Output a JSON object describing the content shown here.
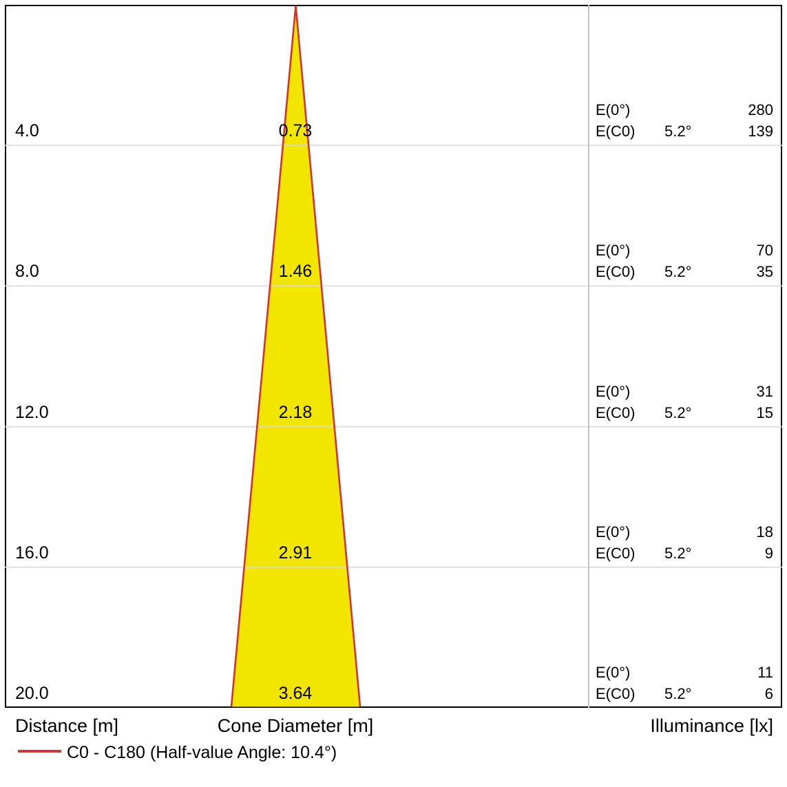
{
  "colors": {
    "cone_fill": "#F2E500",
    "cone_stroke": "#D23228",
    "legend_line": "#C43B40",
    "grid": "#D9D9D9",
    "divider": "#C4C4C4",
    "border": "#000000",
    "background": "#FFFFFF"
  },
  "chart_data": {
    "type": "cone-diagram",
    "title": "",
    "distances_m": [
      4.0,
      8.0,
      12.0,
      16.0,
      20.0
    ],
    "cone_diameters_m": [
      0.73,
      1.46,
      2.18,
      2.91,
      3.64
    ],
    "illuminance_e0_lx": [
      280,
      70,
      31,
      18,
      11
    ],
    "illuminance_ec0_lx": [
      139,
      35,
      15,
      9,
      6
    ],
    "beam_angle": "5.2°",
    "half_value_angle": "10.4°",
    "rows": [
      {
        "distance": "4.0",
        "cone_diameter": "0.73",
        "e0_label": "E(0°)",
        "e0_value": "280",
        "ec0_label": "E(C0)",
        "ec0_angle": "5.2°",
        "ec0_value": "139"
      },
      {
        "distance": "8.0",
        "cone_diameter": "1.46",
        "e0_label": "E(0°)",
        "e0_value": "70",
        "ec0_label": "E(C0)",
        "ec0_angle": "5.2°",
        "ec0_value": "35"
      },
      {
        "distance": "12.0",
        "cone_diameter": "2.18",
        "e0_label": "E(0°)",
        "e0_value": "31",
        "ec0_label": "E(C0)",
        "ec0_angle": "5.2°",
        "ec0_value": "15"
      },
      {
        "distance": "16.0",
        "cone_diameter": "2.91",
        "e0_label": "E(0°)",
        "e0_value": "18",
        "ec0_label": "E(C0)",
        "ec0_angle": "5.2°",
        "ec0_value": "9"
      },
      {
        "distance": "20.0",
        "cone_diameter": "3.64",
        "e0_label": "E(0°)",
        "e0_value": "11",
        "ec0_label": "E(C0)",
        "ec0_angle": "5.2°",
        "ec0_value": "6"
      }
    ],
    "axes": {
      "distance_label": "Distance [m]",
      "cone_diameter_label": "Cone Diameter [m]",
      "illuminance_label": "Illuminance [lx]"
    },
    "legend": {
      "label": "C0 - C180 (Half-value Angle: 10.4°)"
    }
  }
}
